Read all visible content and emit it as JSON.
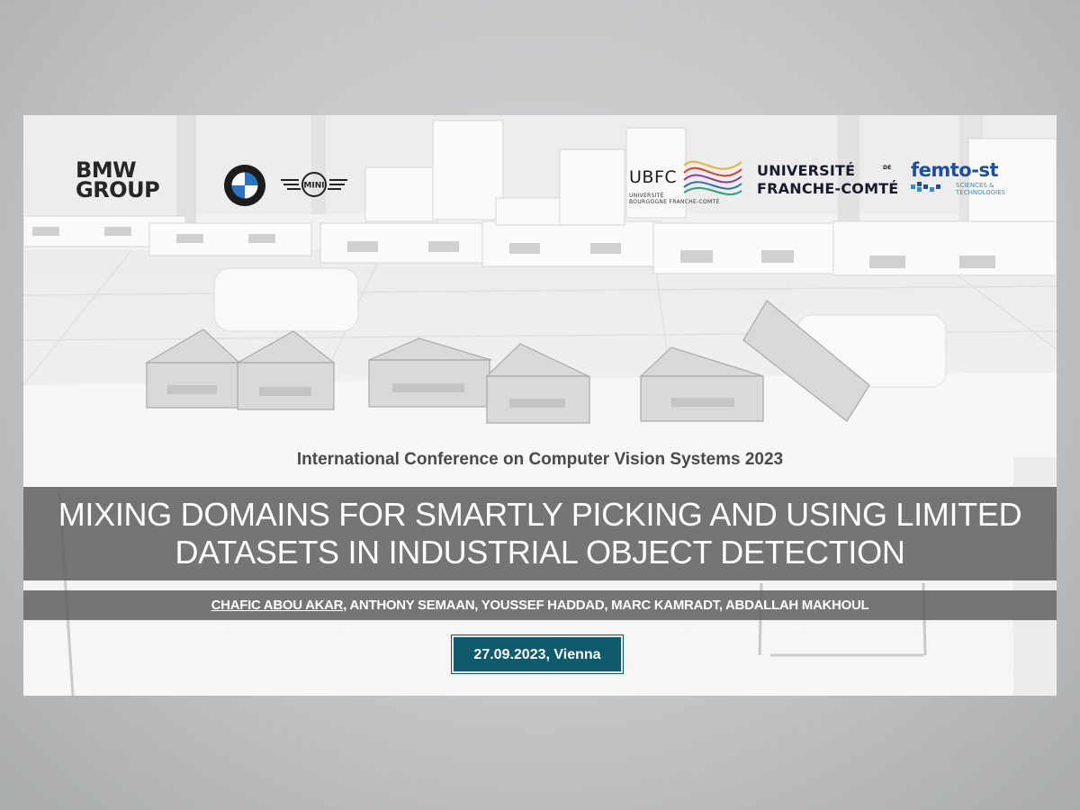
{
  "logos": {
    "bmw_group": [
      "BMW",
      "GROUP"
    ],
    "mini_label": "MINI",
    "ubfc_name": "UBFC",
    "ubfc_sub": [
      "UNIVERSITÉ",
      "BOURGOGNE FRANCHE-COMTÉ"
    ],
    "ufc": [
      "UNIVERSITÉ",
      "FRANCHE-COMTÉ"
    ],
    "ufc_de": "DE",
    "femto_name": "femto-st",
    "femto_sub": [
      "SCIENCES &",
      "TECHNOLOGIES"
    ]
  },
  "conference": "International Conference on Computer Vision Systems 2023",
  "title": [
    "MIXING DOMAINS FOR SMARTLY PICKING AND USING LIMITED",
    "DATASETS IN INDUSTRIAL OBJECT DETECTION"
  ],
  "authors": {
    "lead": "CHAFIC ABOU AKAR",
    "rest": ", ANTHONY SEMAAN, YOUSSEF HADDAD, MARC KAMRADT, ABDALLAH MAKHOUL"
  },
  "date_location": "27.09.2023, Vienna",
  "colors": {
    "band": "#5f5f5f",
    "date_box": "#0f5b6d",
    "femto_blue": "#1e4f9a"
  }
}
